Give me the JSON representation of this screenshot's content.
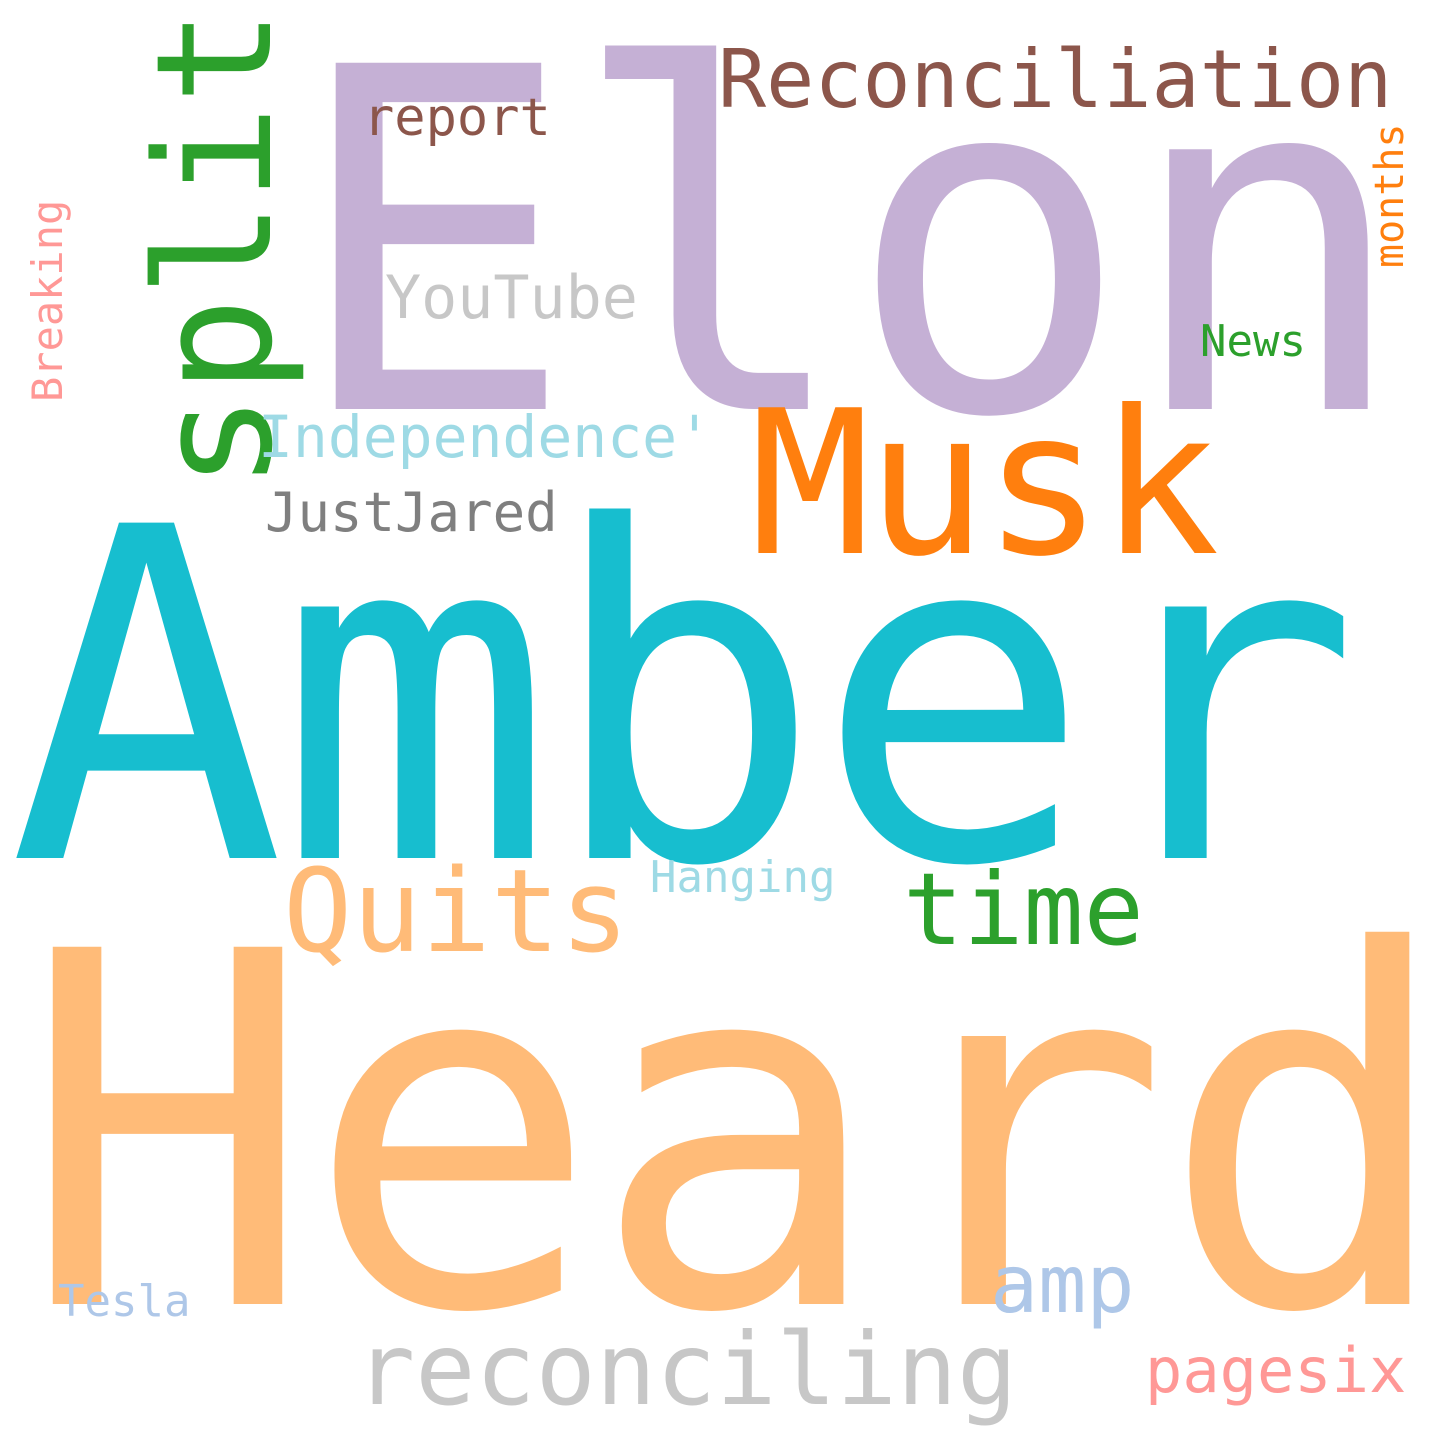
{
  "wordcloud": {
    "background": "#ffffff",
    "words": {
      "elon": {
        "text": "Elon",
        "color": "#c5b0d5"
      },
      "amber": {
        "text": "Amber",
        "color": "#17becf"
      },
      "heard": {
        "text": "Heard",
        "color": "#ffbb78"
      },
      "musk": {
        "text": "Musk",
        "color": "#ff7f0e"
      },
      "split": {
        "text": "split",
        "color": "#2ca02c"
      },
      "reconciliation": {
        "text": "Reconciliation",
        "color": "#8c564b"
      },
      "quits": {
        "text": "Quits",
        "color": "#ffbb78"
      },
      "time": {
        "text": "time",
        "color": "#2ca02c"
      },
      "reconciling": {
        "text": "reconciling",
        "color": "#c7c7c7"
      },
      "report": {
        "text": "report",
        "color": "#8c564b"
      },
      "youtube": {
        "text": "YouTube",
        "color": "#c7c7c7"
      },
      "independence": {
        "text": "Independence'",
        "color": "#9edae5"
      },
      "justjared": {
        "text": "JustJared",
        "color": "#7f7f7f"
      },
      "news": {
        "text": "News",
        "color": "#2ca02c"
      },
      "months": {
        "text": "months",
        "color": "#ff7f0e"
      },
      "breaking": {
        "text": "Breaking",
        "color": "#ff9896"
      },
      "hanging": {
        "text": "Hanging",
        "color": "#9edae5"
      },
      "amp": {
        "text": "amp",
        "color": "#aec7e8"
      },
      "tesla": {
        "text": "Tesla",
        "color": "#aec7e8"
      },
      "pagesix": {
        "text": "pagesix",
        "color": "#ff9896"
      }
    }
  }
}
